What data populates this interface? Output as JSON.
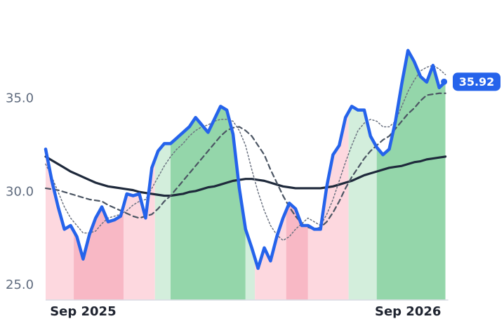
{
  "chart_data": {
    "type": "line",
    "categories": [
      null,
      null,
      null,
      null,
      null,
      null,
      "Sep 2025",
      null,
      null,
      null,
      null,
      null,
      null,
      null,
      null,
      null,
      null,
      null,
      null,
      null,
      null,
      null,
      null,
      null,
      null,
      null,
      null,
      null,
      null,
      null,
      null,
      null,
      null,
      null,
      null,
      null,
      null,
      null,
      null,
      null,
      null,
      null,
      null,
      null,
      null,
      null,
      null,
      null,
      null,
      null,
      null,
      null,
      null,
      null,
      null,
      null,
      null,
      null,
      "Sep 2026",
      null,
      null,
      null,
      null,
      null,
      null
    ],
    "series": [
      {
        "color": "#2563eb",
        "dash": "solid",
        "values": [
          32.3,
          30.6,
          29.2,
          28.0,
          28.2,
          27.6,
          26.4,
          27.7,
          28.6,
          29.2,
          28.4,
          28.5,
          28.7,
          29.9,
          29.8,
          29.9,
          28.6,
          31.3,
          32.2,
          32.6,
          32.6,
          32.9,
          33.2,
          33.5,
          34.0,
          33.6,
          33.2,
          33.9,
          34.6,
          34.4,
          33.1,
          30.2,
          28.0,
          27.0,
          25.9,
          27.0,
          26.3,
          27.6,
          28.6,
          29.4,
          29.1,
          28.2,
          28.2,
          28.0,
          28.0,
          30.3,
          32.0,
          32.5,
          34.0,
          34.6,
          34.4,
          34.4,
          33.0,
          32.4,
          32.0,
          32.3,
          33.8,
          35.8,
          37.6,
          37.0,
          36.2,
          35.9,
          36.8,
          35.6,
          35.92
        ]
      },
      {
        "color": "#6b7280",
        "dash": "dotted",
        "values": [
          31.5,
          30.8,
          30.0,
          29.2,
          28.6,
          28.2,
          27.8,
          27.8,
          27.9,
          28.3,
          28.6,
          28.7,
          28.8,
          29.0,
          29.3,
          29.5,
          29.6,
          30.2,
          30.8,
          31.4,
          31.9,
          32.3,
          32.6,
          33.0,
          33.3,
          33.5,
          33.6,
          33.8,
          33.9,
          33.9,
          33.8,
          33.3,
          32.5,
          31.2,
          30.0,
          29.0,
          28.2,
          27.7,
          27.4,
          27.6,
          28.0,
          28.3,
          28.6,
          28.4,
          28.2,
          28.8,
          29.6,
          30.6,
          31.6,
          32.5,
          33.3,
          33.7,
          33.9,
          33.8,
          33.5,
          33.5,
          33.8,
          34.6,
          35.4,
          36.0,
          36.5,
          36.7,
          36.8,
          36.6,
          36.3
        ]
      },
      {
        "color": "#4b5563",
        "dash": "dashed",
        "values": [
          30.2,
          30.15,
          30.1,
          30.0,
          29.9,
          29.8,
          29.7,
          29.6,
          29.55,
          29.5,
          29.3,
          29.15,
          29.0,
          28.85,
          28.7,
          28.6,
          28.7,
          28.8,
          29.1,
          29.5,
          29.8,
          30.2,
          30.6,
          31.0,
          31.4,
          31.8,
          32.2,
          32.6,
          33.0,
          33.3,
          33.45,
          33.5,
          33.3,
          33.0,
          32.5,
          32.0,
          31.2,
          30.5,
          29.8,
          29.2,
          28.7,
          28.3,
          28.1,
          28.0,
          28.1,
          28.4,
          28.9,
          29.5,
          30.2,
          30.8,
          31.3,
          31.8,
          32.2,
          32.5,
          32.8,
          33.0,
          33.4,
          33.8,
          34.2,
          34.5,
          34.9,
          35.2,
          35.25,
          35.3,
          35.3
        ]
      },
      {
        "color": "#1e293b",
        "dash": "solid",
        "values": [
          31.9,
          31.7,
          31.5,
          31.3,
          31.1,
          30.95,
          30.8,
          30.65,
          30.5,
          30.4,
          30.3,
          30.25,
          30.2,
          30.15,
          30.1,
          30.0,
          29.95,
          29.9,
          29.85,
          29.8,
          29.8,
          29.85,
          29.9,
          30.0,
          30.05,
          30.15,
          30.25,
          30.3,
          30.4,
          30.5,
          30.6,
          30.65,
          30.7,
          30.7,
          30.65,
          30.6,
          30.5,
          30.4,
          30.3,
          30.25,
          30.2,
          30.2,
          30.2,
          30.2,
          30.2,
          30.25,
          30.3,
          30.4,
          30.5,
          30.6,
          30.75,
          30.9,
          31.0,
          31.1,
          31.2,
          31.3,
          31.35,
          31.4,
          31.5,
          31.6,
          31.65,
          31.75,
          31.8,
          31.85,
          31.9
        ]
      }
    ],
    "bands": [
      {
        "from": 0,
        "to": 4.5,
        "color": "#fdd8df"
      },
      {
        "from": 4.5,
        "to": 12.5,
        "color": "#f8b8c5"
      },
      {
        "from": 12.5,
        "to": 17.5,
        "color": "#fdd8df"
      },
      {
        "from": 17.5,
        "to": 20,
        "color": "#d3eedc"
      },
      {
        "from": 20,
        "to": 32,
        "color": "#94d6aa"
      },
      {
        "from": 32,
        "to": 33.5,
        "color": "#d3eedc"
      },
      {
        "from": 33.5,
        "to": 38.5,
        "color": "#fdd8df"
      },
      {
        "from": 38.5,
        "to": 42,
        "color": "#f8b8c5"
      },
      {
        "from": 42,
        "to": 48.5,
        "color": "#fdd8df"
      },
      {
        "from": 48.5,
        "to": 53,
        "color": "#d3eedc"
      },
      {
        "from": 53,
        "to": 64,
        "color": "#94d6aa"
      }
    ],
    "ylim": [
      24.2,
      38.8
    ],
    "yticks": [
      {
        "value": 25,
        "label": "25.0"
      },
      {
        "value": 30,
        "label": "30.0"
      },
      {
        "value": 35,
        "label": "35.0"
      }
    ]
  }
}
